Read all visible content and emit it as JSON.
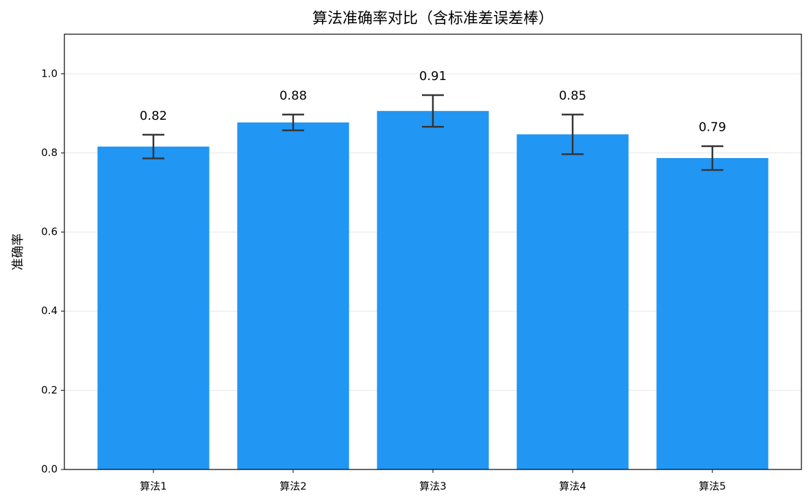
{
  "chart_data": {
    "type": "bar",
    "title": "算法准确率对比（含标准差误差棒）",
    "y_label": "准确率",
    "categories": [
      "算法1",
      "算法2",
      "算法3",
      "算法4",
      "算法5"
    ],
    "values": [
      0.816,
      0.877,
      0.906,
      0.847,
      0.787
    ],
    "value_labels": [
      "0.82",
      "0.88",
      "0.91",
      "0.85",
      "0.79"
    ],
    "errors": [
      0.03,
      0.02,
      0.04,
      0.05,
      0.03
    ],
    "color": "#2196f3",
    "error_color": "#333333",
    "ylim": [
      0,
      1.1
    ],
    "yticks": [
      {
        "value": 0,
        "label": "0.0"
      },
      0.2,
      0.4,
      0.6,
      0.8,
      {
        "value": 1,
        "label": "1.0"
      }
    ],
    "grid": true
  }
}
